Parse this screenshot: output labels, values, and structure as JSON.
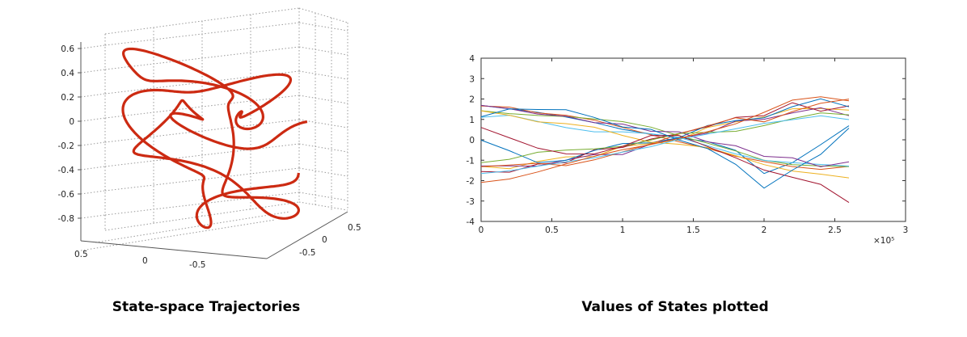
{
  "captions": {
    "left": "State-space Trajectories",
    "right": "Values of States plotted"
  },
  "chart_data": [
    {
      "type": "line",
      "subtype": "3d-trajectory",
      "title": "",
      "z_ticks": [
        "0.6",
        "0.4",
        "0.2",
        "0",
        "-0.2",
        "-0.4",
        "-0.6",
        "-0.8"
      ],
      "x_ticks": [
        "0.5",
        "0"
      ],
      "y_ticks": [
        "0.5",
        "0",
        "-0.5"
      ],
      "x_tick_partial": "-0.5",
      "zlim": [
        -0.9,
        0.7
      ],
      "grid": true,
      "color": "#cc2a12",
      "series": [
        {
          "values": [
            0.45,
            0.62,
            0.55,
            0.3,
            0.12,
            -0.05,
            0.2,
            0.45,
            0.3,
            0.05,
            -0.2,
            -0.45,
            -0.7,
            -0.8,
            -0.6,
            -0.3,
            -0.1,
            0.05,
            0.3,
            0.42,
            0.25,
            0.0,
            -0.15,
            0.1,
            0.28,
            0.12,
            -0.02,
            0.15
          ]
        }
      ]
    },
    {
      "type": "line",
      "title": "",
      "xlabel": "",
      "ylabel": "",
      "x_ticks": [
        "0",
        "0.5",
        "1",
        "1.5",
        "2",
        "2.5",
        "3"
      ],
      "y_ticks": [
        "4",
        "3",
        "2",
        "1",
        "0",
        "-1",
        "-2",
        "-3",
        "-4"
      ],
      "x_exponent": "×10⁵",
      "xlim": [
        0,
        300000
      ],
      "ylim": [
        -4,
        4
      ],
      "grid": false,
      "x": [
        0,
        20000,
        40000,
        60000,
        80000,
        100000,
        120000,
        140000,
        160000,
        180000,
        200000,
        220000,
        240000,
        260000
      ],
      "series": [
        {
          "color": "#0072bd",
          "values": [
            1.8,
            1.6,
            1.3,
            1.0,
            0.8,
            0.6,
            0.4,
            0.1,
            -0.2,
            -0.6,
            -1.6,
            -1.0,
            -0.2,
            0.6
          ]
        },
        {
          "color": "#d95319",
          "values": [
            1.6,
            1.5,
            1.2,
            1.1,
            0.9,
            0.6,
            0.3,
            0.0,
            -0.3,
            -0.7,
            -1.0,
            -1.3,
            -1.5,
            -1.4
          ]
        },
        {
          "color": "#edb120",
          "values": [
            -1.4,
            -1.3,
            -1.1,
            -0.9,
            -0.7,
            -0.4,
            -0.2,
            0.1,
            0.5,
            0.9,
            1.2,
            1.4,
            1.6,
            1.5
          ]
        },
        {
          "color": "#7e2f8e",
          "values": [
            -1.2,
            -1.4,
            -1.2,
            -1.0,
            -0.8,
            -0.6,
            -0.3,
            0.1,
            0.4,
            0.8,
            1.1,
            1.3,
            1.5,
            1.3
          ]
        },
        {
          "color": "#77ac30",
          "values": [
            1.5,
            1.4,
            1.3,
            1.2,
            1.0,
            0.8,
            0.5,
            0.1,
            -0.2,
            -0.5,
            -0.9,
            -1.1,
            -1.2,
            -1.3
          ]
        },
        {
          "color": "#4dbeee",
          "values": [
            1.0,
            1.1,
            0.9,
            0.7,
            0.5,
            0.4,
            0.2,
            0.0,
            -0.3,
            -0.6,
            -0.9,
            -1.1,
            -1.3,
            -1.4
          ]
        },
        {
          "color": "#a2142f",
          "values": [
            -1.6,
            -1.5,
            -1.3,
            -1.0,
            -0.6,
            -0.3,
            0.0,
            0.3,
            0.7,
            1.0,
            1.3,
            1.7,
            1.5,
            1.6
          ]
        },
        {
          "color": "#0072bd",
          "values": [
            0.1,
            -0.6,
            -1.2,
            -0.9,
            -0.5,
            -0.3,
            -0.1,
            0.2,
            0.6,
            0.9,
            1.2,
            1.6,
            1.9,
            1.7
          ]
        },
        {
          "color": "#d95319",
          "values": [
            -1.3,
            -1.2,
            -1.1,
            -1.2,
            -0.9,
            -0.5,
            -0.1,
            0.4,
            0.8,
            1.2,
            1.0,
            1.5,
            1.9,
            2.1
          ]
        },
        {
          "color": "#edb120",
          "values": [
            1.3,
            1.2,
            1.0,
            0.8,
            0.5,
            0.2,
            0.0,
            -0.2,
            -0.5,
            -0.8,
            -1.1,
            -1.5,
            -1.8,
            -1.9
          ]
        },
        {
          "color": "#7e2f8e",
          "values": [
            1.7,
            1.5,
            1.3,
            1.1,
            0.9,
            0.7,
            0.5,
            0.3,
            0.0,
            -0.4,
            -0.7,
            -1.0,
            -1.2,
            -1.2
          ]
        },
        {
          "color": "#77ac30",
          "values": [
            -1.0,
            -0.9,
            -0.7,
            -0.6,
            -0.4,
            -0.2,
            0.0,
            0.2,
            0.3,
            0.5,
            0.8,
            1.0,
            1.2,
            1.2
          ]
        },
        {
          "color": "#4dbeee",
          "values": [
            -1.7,
            -1.6,
            -1.4,
            -1.2,
            -1.0,
            -0.7,
            -0.4,
            0.0,
            0.3,
            0.6,
            0.9,
            1.1,
            1.3,
            1.1
          ]
        },
        {
          "color": "#a2142f",
          "values": [
            0.5,
            0.2,
            -0.4,
            -0.8,
            -0.6,
            -0.3,
            0.1,
            0.3,
            -0.3,
            -1.0,
            -1.4,
            -1.8,
            -2.3,
            -3.0
          ]
        },
        {
          "color": "#0072bd",
          "values": [
            1.2,
            1.4,
            1.6,
            1.4,
            1.1,
            0.7,
            0.4,
            0.1,
            -0.5,
            -1.2,
            -2.3,
            -1.6,
            -0.6,
            0.5
          ]
        },
        {
          "color": "#d95319",
          "values": [
            -2.0,
            -1.8,
            -1.5,
            -1.2,
            -0.9,
            -0.6,
            -0.3,
            0.1,
            0.5,
            0.9,
            1.4,
            1.9,
            2.0,
            1.8
          ]
        }
      ]
    }
  ]
}
